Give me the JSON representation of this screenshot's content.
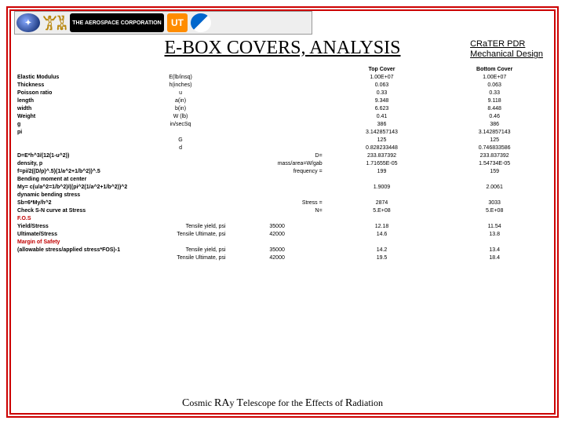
{
  "header": {
    "title": "E-BOX COVERS, ANALYSIS",
    "subtitle_l1": "CRaTER PDR",
    "subtitle_l2": "Mechanical Design",
    "aero_label": "THE AEROSPACE CORPORATION",
    "ut_label": "UT"
  },
  "columns": {
    "top": "Top Cover",
    "bottom": "Bottom Cover"
  },
  "rows": [
    {
      "label": "Elastic Modulus",
      "sym": "E(lb/insq)",
      "mid": "",
      "v1": "1.00E+07",
      "v2": "1.00E+07"
    },
    {
      "label": "Thickness",
      "sym": "h(inches)",
      "mid": "",
      "v1": "0.063",
      "v2": "0.063"
    },
    {
      "label": "Poisson ratio",
      "sym": "u",
      "mid": "",
      "v1": "0.33",
      "v2": "0.33"
    },
    {
      "label": "length",
      "sym": "a(in)",
      "mid": "",
      "v1": "9.348",
      "v2": "9.118"
    },
    {
      "label": "width",
      "sym": "b(in)",
      "mid": "",
      "v1": "6.623",
      "v2": "8.448"
    },
    {
      "label": "Weight",
      "sym": "W (lb)",
      "mid": "",
      "v1": "0.41",
      "v2": "0.46"
    },
    {
      "label": "g",
      "sym": "in/secSq",
      "mid": "",
      "v1": "386",
      "v2": "386"
    },
    {
      "label": "pi",
      "sym": "",
      "mid": "",
      "v1": "3.142857143",
      "v2": "3.142857143"
    },
    {
      "label": "",
      "sym": "G",
      "mid": "",
      "v1": "125",
      "v2": "125"
    },
    {
      "label": "",
      "sym": "d",
      "mid": "",
      "v1": "0.828233448",
      "v2": "0.746833586"
    },
    {
      "label": "D=E*h^3/(12(1-u^2))",
      "sym": "",
      "mid": "D=",
      "v1": "233.837392",
      "v2": "233.837392"
    },
    {
      "label": "density, p",
      "sym": "",
      "mid": "mass/area=W/gab",
      "v1": "1.71655E-05",
      "v2": "1.54734E-05"
    },
    {
      "label": "f=pi/2((D/p)^.5)(1/a^2+1/b^2))^.5",
      "sym": "",
      "mid": "frequency =",
      "v1": "199",
      "v2": "159"
    },
    {
      "label": "Bending moment at center",
      "sym": "",
      "mid": "",
      "v1": "",
      "v2": "",
      "section": true
    },
    {
      "label": "My= c(u/a^2=1/b^2)/((pi^2(1/a^2+1/b^2))^2",
      "sym": "",
      "mid": "",
      "v1": "1.9009",
      "v2": "2.0061"
    },
    {
      "label": "dynamic bending stress",
      "sym": "",
      "mid": "",
      "v1": "",
      "v2": "",
      "section": true
    },
    {
      "label": "Sb=6*My/h^2",
      "sym": "",
      "mid": "Stress =",
      "v1": "2874",
      "v2": "3033"
    },
    {
      "label": "Check S-N curve at Stress",
      "sym": "",
      "mid": "N=",
      "v1": "5.E+08",
      "v2": "5.E+08"
    },
    {
      "label": "F.O.S",
      "sym": "",
      "mid": "",
      "v1": "",
      "v2": "",
      "redsection": true
    },
    {
      "label": "Yield/Stress",
      "sym": "",
      "mid": "Tensile yield, psi",
      "midv": "35000",
      "v1": "12.18",
      "v2": "11.54"
    },
    {
      "label": "Ultimate/Stress",
      "sym": "",
      "mid": "Tensile Ultimate, psi",
      "midv": "42000",
      "v1": "14.6",
      "v2": "13.8"
    },
    {
      "label": "Margin of Safety",
      "sym": "",
      "mid": "",
      "v1": "",
      "v2": "",
      "redsection": true
    },
    {
      "label": "(allowable stress/applied stress*FOS)-1",
      "sym": "",
      "mid": "Tensile yield, psi",
      "midv": "35000",
      "v1": "14.2",
      "v2": "13.4"
    },
    {
      "label": "",
      "sym": "",
      "mid": "Tensile Ultimate, psi",
      "midv": "42000",
      "v1": "19.5",
      "v2": "18.4"
    }
  ],
  "footer": "Cosmic RAy Telescope for the Effects of Radiation"
}
